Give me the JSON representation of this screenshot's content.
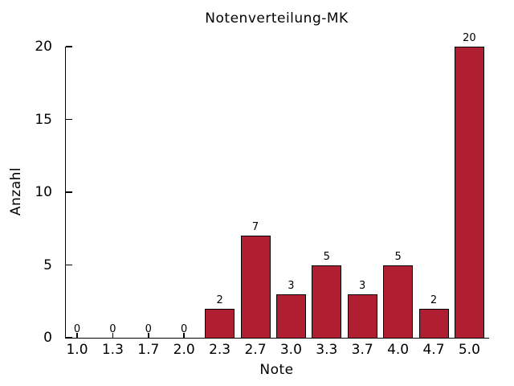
{
  "chart_data": {
    "type": "bar",
    "title": "Notenverteilung-MK",
    "xlabel": "Note",
    "ylabel": "Anzahl",
    "categories": [
      "1.0",
      "1.3",
      "1.7",
      "2.0",
      "2.3",
      "2.7",
      "3.0",
      "3.3",
      "3.7",
      "4.0",
      "4.7",
      "5.0"
    ],
    "values": [
      0,
      0,
      0,
      0,
      2,
      7,
      3,
      5,
      3,
      5,
      2,
      20
    ],
    "value_labels_shown": true,
    "ylim": [
      0,
      20
    ],
    "yticks": [
      0,
      5,
      10,
      15,
      20
    ],
    "grid": false,
    "legend": "none",
    "bar_color": "#b01e32",
    "bar_border_color": "#000000",
    "axis_color": "#000000",
    "text_color": "#000000",
    "background_color": "#ffffff"
  }
}
